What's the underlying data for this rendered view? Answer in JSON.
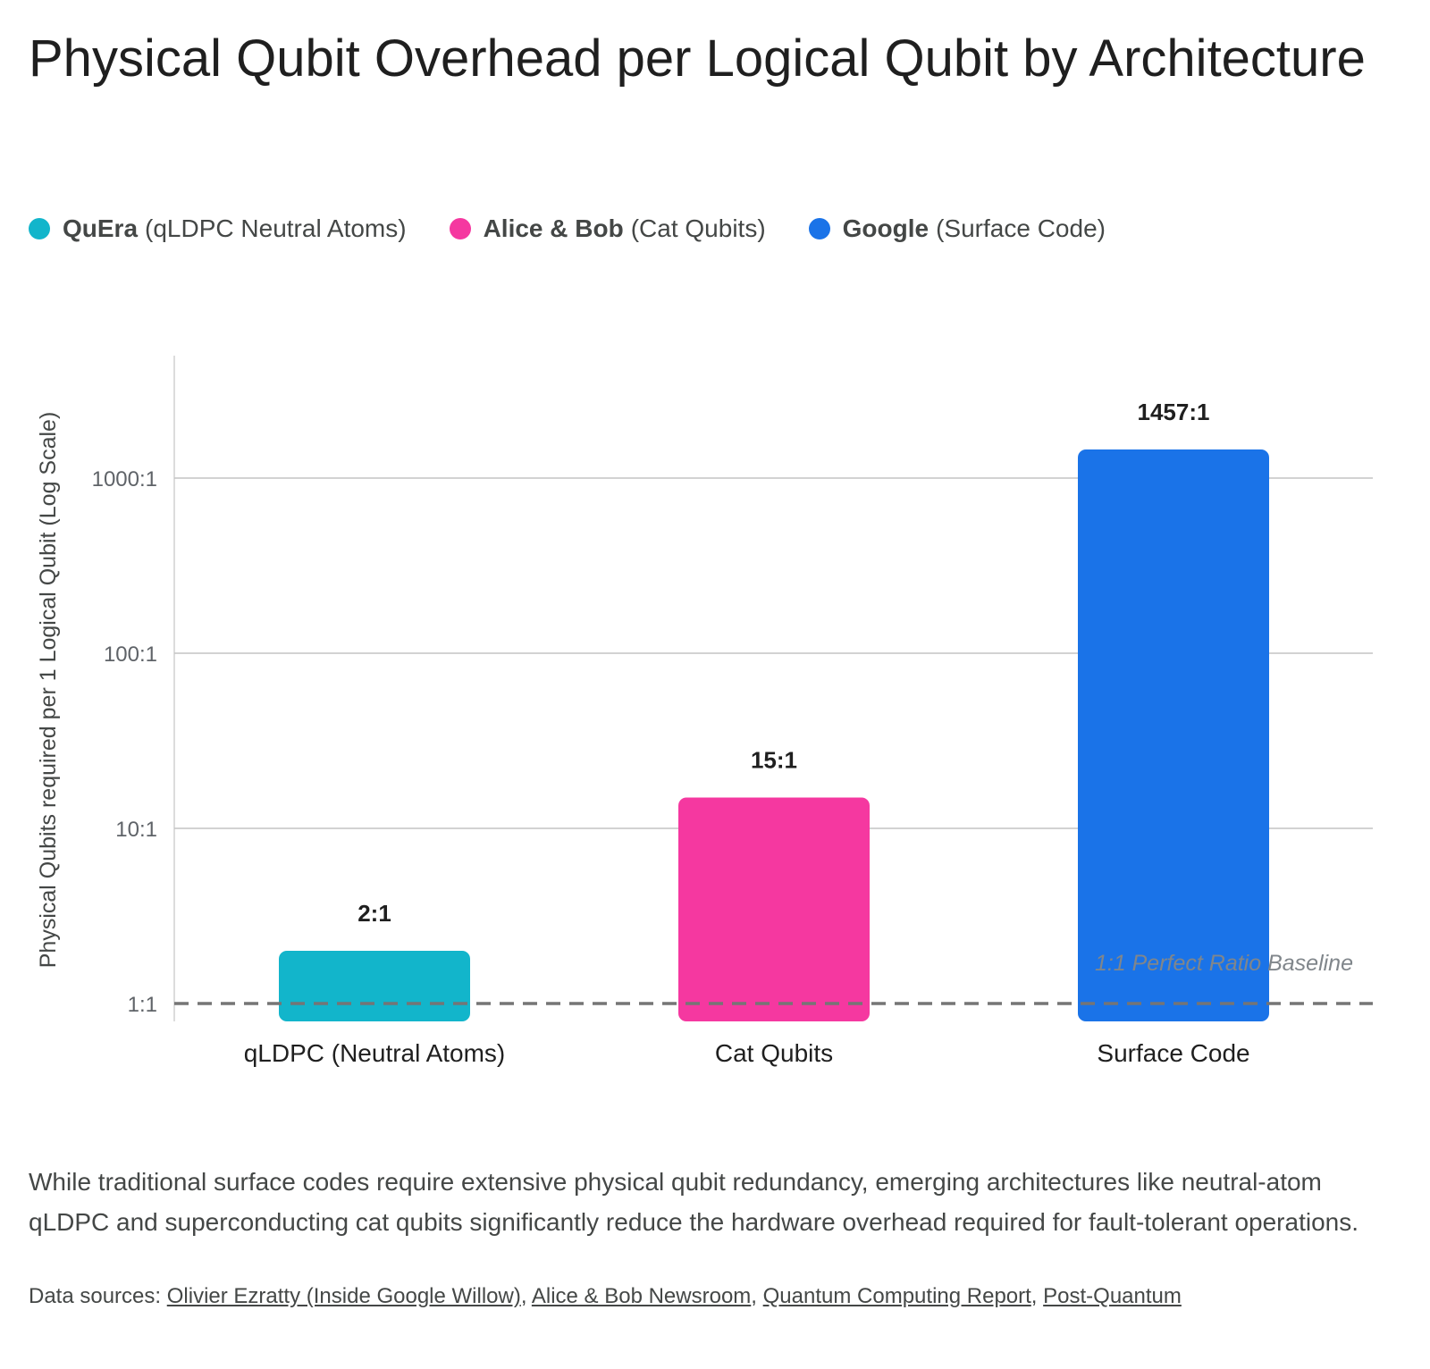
{
  "title": "Physical Qubit Overhead per Logical Qubit by Architecture",
  "legend": [
    {
      "name": "QuEra",
      "detail": "(qLDPC Neutral Atoms)",
      "color": "#12B5CB"
    },
    {
      "name": "Alice & Bob",
      "detail": "(Cat Qubits)",
      "color": "#F538A0"
    },
    {
      "name": "Google",
      "detail": "(Surface Code)",
      "color": "#1A73E8"
    }
  ],
  "chart_data": {
    "type": "bar",
    "categories": [
      "qLDPC (Neutral Atoms)",
      "Cat Qubits",
      "Surface Code"
    ],
    "values": [
      2,
      15,
      1457
    ],
    "value_labels": [
      "2:1",
      "15:1",
      "1457:1"
    ],
    "colors": [
      "#12B5CB",
      "#F538A0",
      "#1A73E8"
    ],
    "ylabel": "Physical Qubits required per 1 Logical Qubit (Log Scale)",
    "yscale": "log",
    "ylim": [
      0.75,
      5000
    ],
    "yticks": [
      1,
      10,
      100,
      1000
    ],
    "ytick_labels": [
      "1:1",
      "10:1",
      "100:1",
      "1000:1"
    ],
    "grid": true,
    "baseline": {
      "value": 1,
      "label": "1:1 Perfect Ratio Baseline",
      "style": "dashed"
    }
  },
  "caption": "While traditional surface codes require extensive physical qubit redundancy, emerging architectures like neutral-atom qLDPC and superconducting cat qubits significantly reduce the hardware overhead required for fault-tolerant operations.",
  "sources": {
    "prefix": "Data sources: ",
    "links": [
      "Olivier Ezratty (Inside Google Willow)",
      "Alice & Bob Newsroom",
      "Quantum Computing Report",
      "Post-Quantum"
    ],
    "separator": ", "
  }
}
